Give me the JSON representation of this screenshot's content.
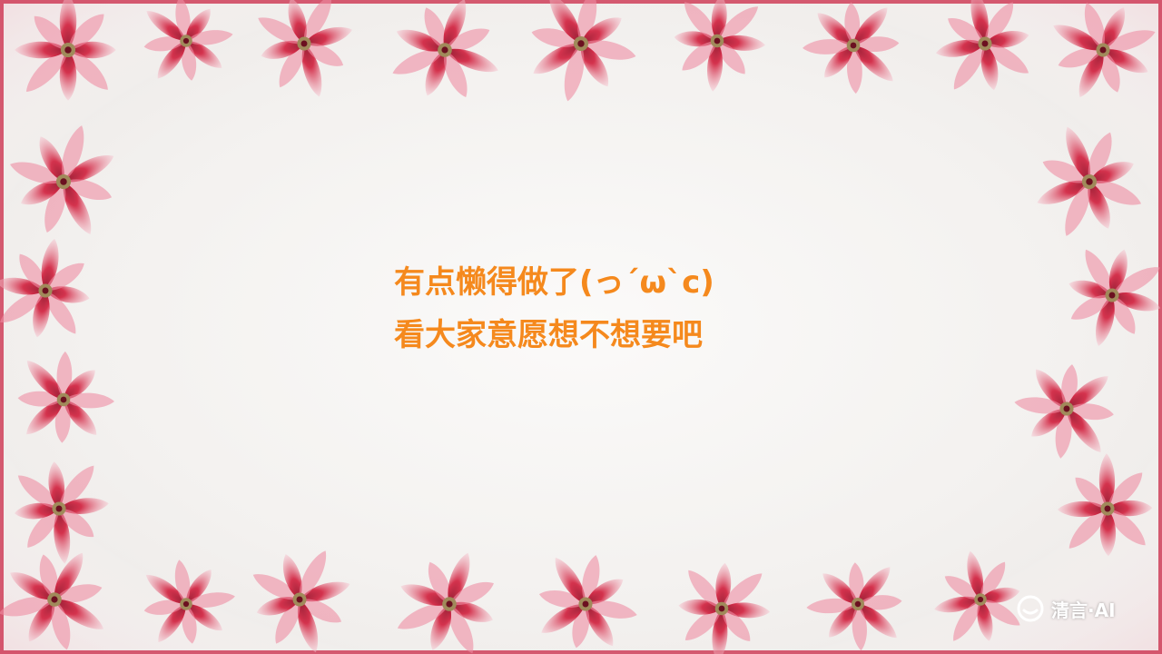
{
  "message": {
    "line1": "有点懒得做了(っ´ω`c)",
    "line2": "看大家意愿想不想要吧",
    "color": "#f5891d"
  },
  "watermark": {
    "text": "清言·AI",
    "icon": "chatglm-logo-icon"
  },
  "border": {
    "motif": "red-flower",
    "petal_color": "#c8193a",
    "light_petal_color": "#ef8ea3",
    "center_color": "#a08a5a"
  }
}
